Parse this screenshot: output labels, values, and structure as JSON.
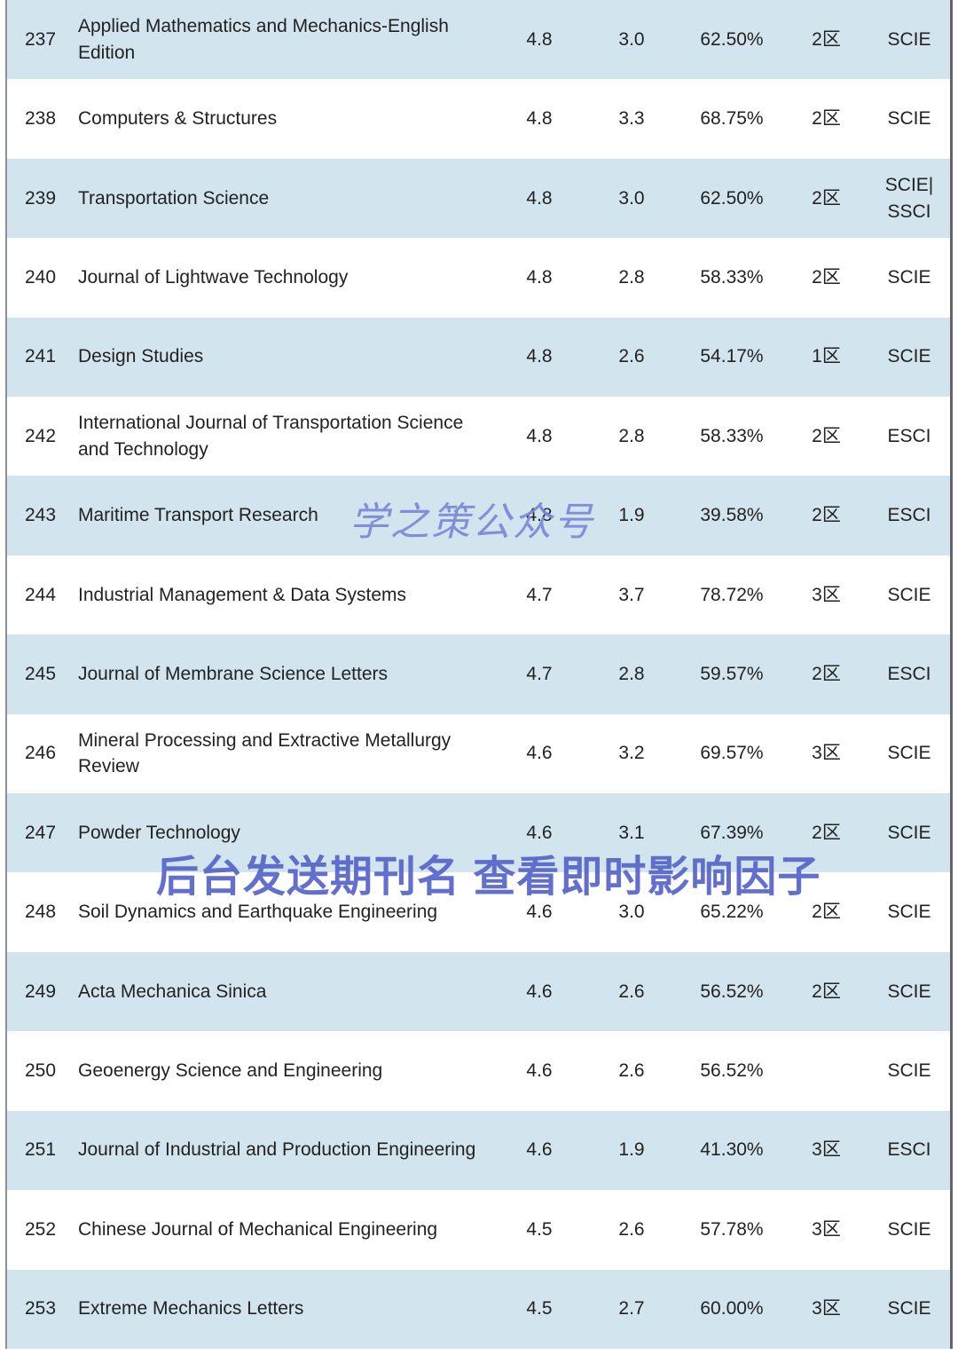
{
  "chart_data": {
    "type": "table",
    "rows": [
      {
        "rank": "237",
        "name": "Applied Mathematics and Mechanics-English Edition",
        "v1": "4.8",
        "v2": "3.0",
        "pct": "62.50%",
        "zone": "2区",
        "db": "SCIE"
      },
      {
        "rank": "238",
        "name": "Computers & Structures",
        "v1": "4.8",
        "v2": "3.3",
        "pct": "68.75%",
        "zone": "2区",
        "db": "SCIE"
      },
      {
        "rank": "239",
        "name": "Transportation Science",
        "v1": "4.8",
        "v2": "3.0",
        "pct": "62.50%",
        "zone": "2区",
        "db": "SCIE|\nSSCI"
      },
      {
        "rank": "240",
        "name": "Journal of Lightwave Technology",
        "v1": "4.8",
        "v2": "2.8",
        "pct": "58.33%",
        "zone": "2区",
        "db": "SCIE"
      },
      {
        "rank": "241",
        "name": "Design Studies",
        "v1": "4.8",
        "v2": "2.6",
        "pct": "54.17%",
        "zone": "1区",
        "db": "SCIE"
      },
      {
        "rank": "242",
        "name": "International Journal of Transportation Science and Technology",
        "v1": "4.8",
        "v2": "2.8",
        "pct": "58.33%",
        "zone": "2区",
        "db": "ESCI"
      },
      {
        "rank": "243",
        "name": "Maritime Transport Research",
        "v1": "4.8",
        "v2": "1.9",
        "pct": "39.58%",
        "zone": "2区",
        "db": "ESCI"
      },
      {
        "rank": "244",
        "name": "Industrial Management & Data Systems",
        "v1": "4.7",
        "v2": "3.7",
        "pct": "78.72%",
        "zone": "3区",
        "db": "SCIE"
      },
      {
        "rank": "245",
        "name": "Journal of Membrane Science Letters",
        "v1": "4.7",
        "v2": "2.8",
        "pct": "59.57%",
        "zone": "2区",
        "db": "ESCI"
      },
      {
        "rank": "246",
        "name": "Mineral Processing and Extractive Metallurgy Review",
        "v1": "4.6",
        "v2": "3.2",
        "pct": "69.57%",
        "zone": "3区",
        "db": "SCIE"
      },
      {
        "rank": "247",
        "name": "Powder Technology",
        "v1": "4.6",
        "v2": "3.1",
        "pct": "67.39%",
        "zone": "2区",
        "db": "SCIE"
      },
      {
        "rank": "248",
        "name": "Soil Dynamics and Earthquake Engineering",
        "v1": "4.6",
        "v2": "3.0",
        "pct": "65.22%",
        "zone": "2区",
        "db": "SCIE"
      },
      {
        "rank": "249",
        "name": "Acta Mechanica Sinica",
        "v1": "4.6",
        "v2": "2.6",
        "pct": "56.52%",
        "zone": "2区",
        "db": "SCIE"
      },
      {
        "rank": "250",
        "name": "Geoenergy Science and Engineering",
        "v1": "4.6",
        "v2": "2.6",
        "pct": "56.52%",
        "zone": "",
        "db": "SCIE"
      },
      {
        "rank": "251",
        "name": "Journal of Industrial and Production Engineering",
        "v1": "4.6",
        "v2": "1.9",
        "pct": "41.30%",
        "zone": "3区",
        "db": "ESCI"
      },
      {
        "rank": "252",
        "name": "Chinese Journal of Mechanical Engineering",
        "v1": "4.5",
        "v2": "2.6",
        "pct": "57.78%",
        "zone": "3区",
        "db": "SCIE"
      },
      {
        "rank": "253",
        "name": "Extreme Mechanics Letters",
        "v1": "4.5",
        "v2": "2.7",
        "pct": "60.00%",
        "zone": "3区",
        "db": "SCIE"
      }
    ]
  },
  "watermarks": {
    "brand": "学之策公众号",
    "cta": "后台发送期刊名 查看即时影响因子"
  },
  "colors": {
    "row_alt": "#d2e4ee",
    "text": "#222222",
    "watermark_brand": "#7b87d9",
    "watermark_cta": "#5663c9",
    "border_left": "#8d9298",
    "border_right": "#63676b"
  }
}
